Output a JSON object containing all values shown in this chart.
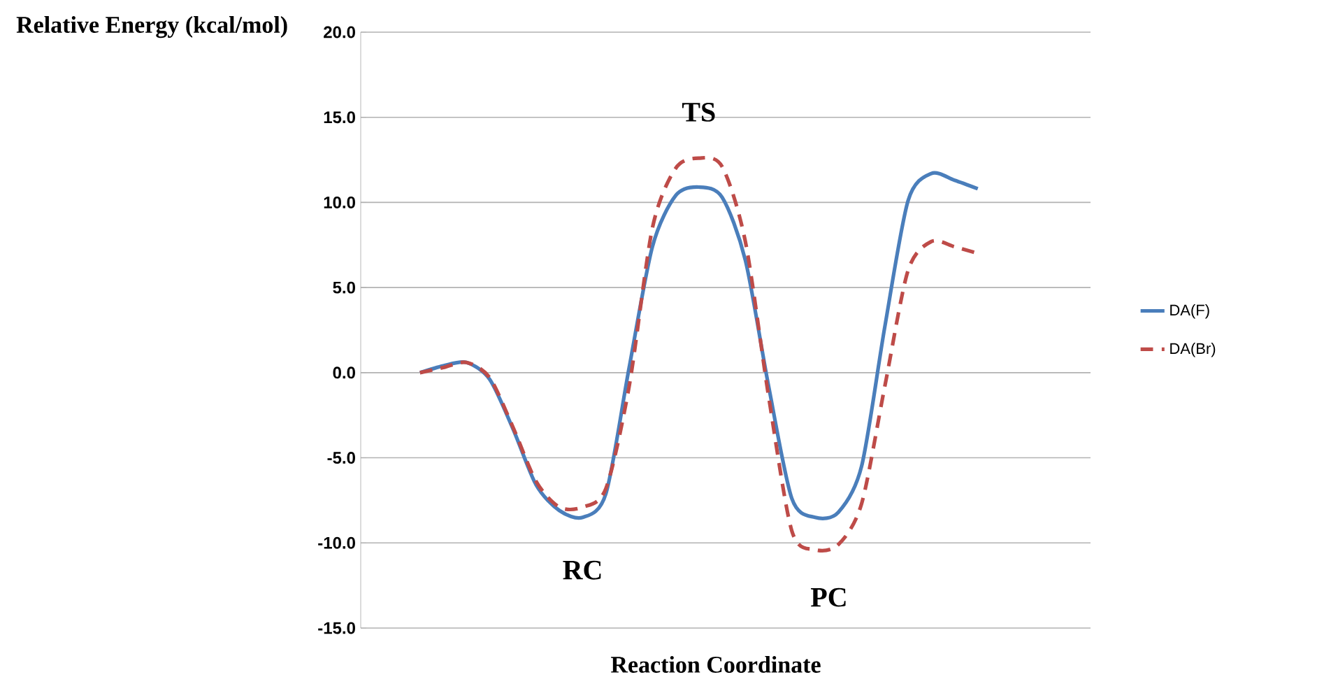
{
  "chart_data": {
    "type": "line",
    "xlabel": "Reaction Coordinate",
    "ylabel": "Relative Energy (kcal/mol)",
    "categories": [
      null,
      null,
      null,
      null,
      null,
      null,
      null,
      null,
      null,
      null,
      null,
      null,
      null,
      null,
      null,
      null,
      null,
      null,
      null,
      null,
      null,
      null,
      null,
      null,
      null
    ],
    "series": [
      {
        "name": "DA(F)",
        "color": "#4a7ebb",
        "line_style": "solid",
        "values": [
          0,
          0.4,
          0.6,
          -0.4,
          -3.3,
          -6.6,
          -8.1,
          -8.5,
          -7.1,
          0.3,
          7.4,
          10.4,
          10.9,
          10.3,
          6.6,
          -0.8,
          -7.4,
          -8.5,
          -8.2,
          -5.5,
          2.7,
          10.1,
          11.7,
          11.3,
          10.8
        ]
      },
      {
        "name": "DA(Br)",
        "color": "#be4b48",
        "line_style": "dashed",
        "values": [
          0,
          0.3,
          0.6,
          -0.3,
          -3.2,
          -6.4,
          -7.9,
          -7.9,
          -6.8,
          -0.8,
          8.5,
          12.0,
          12.6,
          12.1,
          7.7,
          -1.4,
          -9.3,
          -10.4,
          -10.1,
          -7.7,
          -0.8,
          6.0,
          7.7,
          7.4,
          7.0
        ]
      }
    ],
    "ylim": [
      -15,
      20
    ],
    "yticks": [
      {
        "value": -15,
        "label": "-15.0"
      },
      {
        "value": -10,
        "label": "-10.0"
      },
      {
        "value": -5,
        "label": "-5.0"
      },
      {
        "value": 0,
        "label": "0.0"
      },
      {
        "value": 5,
        "label": "5.0"
      },
      {
        "value": 10,
        "label": "10.0"
      },
      {
        "value": 15,
        "label": "15.0"
      },
      {
        "value": 20,
        "label": "20.0"
      }
    ],
    "grid": "y",
    "legend": "right",
    "marker": "none",
    "annotations": [
      "TS",
      "RC",
      "PC"
    ]
  }
}
